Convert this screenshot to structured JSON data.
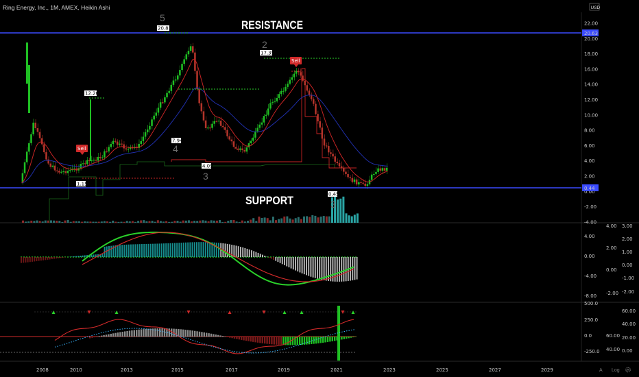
{
  "header": {
    "title": "Ring Energy, Inc., 1M, AMEX, Heikin Ashi",
    "currency": "USD"
  },
  "footer": {
    "a_label": "A",
    "log_label": "Log"
  },
  "colors": {
    "up": "#1fbf23",
    "down": "#b3342a",
    "resistance": "#3a4bff",
    "support": "#3a4bff",
    "ema_fast": "#c62424",
    "ema_slow": "#1f2ea8"
  },
  "chart_data": [
    {
      "type": "line",
      "panel": "price",
      "title": "",
      "scale": "log",
      "x": [
        "2007-12",
        "2008-06",
        "2009-01",
        "2009-06",
        "2010-01",
        "2010-06",
        "2011-01",
        "2011-06",
        "2012-01",
        "2012-06",
        "2013-01",
        "2013-06",
        "2014-01",
        "2014-06",
        "2014-09",
        "2015-01",
        "2015-06",
        "2016-01",
        "2016-06",
        "2017-01",
        "2017-06",
        "2018-01",
        "2018-06",
        "2019-01",
        "2019-06",
        "2020-01",
        "2020-06",
        "2021-01",
        "2021-06",
        "2021-11"
      ],
      "series": [
        {
          "name": "",
          "values": [
            1.1,
            9.0,
            3.5,
            2.5,
            2.9,
            3.8,
            4.5,
            6.5,
            5.5,
            6.0,
            10.0,
            12.5,
            16.0,
            19.5,
            12.0,
            8.0,
            9.5,
            6.0,
            5.2,
            8.5,
            11.5,
            13.5,
            16.0,
            12.0,
            6.5,
            3.2,
            1.6,
            0.7,
            2.8,
            3.0
          ]
        }
      ],
      "annotations": {
        "wave_labels": [
          "5",
          "4",
          "3",
          "2",
          "3",
          "3"
        ],
        "price_callouts": [
          "20.81",
          "12.20",
          "1.15",
          "7.94",
          "4.09",
          "17.35",
          "0.45"
        ],
        "sell_label": "Sell",
        "resistance_price": "20.63",
        "support_price": "0.44",
        "resistance_text": "RESISTANCE",
        "support_text": "SUPPORT"
      },
      "y_ticks": [
        "22.00",
        "20.00",
        "18.00",
        "16.00",
        "14.00",
        "12.00",
        "10.00",
        "8.00",
        "6.00",
        "4.00",
        "2.00",
        "0.00",
        "-2.00",
        "-4.00"
      ],
      "x_ticks": [
        "2008",
        "2010",
        "2013",
        "2015",
        "2017",
        "2019",
        "2021",
        "2023",
        "2025",
        "2027",
        "2029"
      ]
    },
    {
      "type": "line",
      "panel": "macd",
      "y_ticks_left": [
        "4.00",
        "0.00",
        "-4.00",
        "-8.00"
      ],
      "y_ticks_right_a": [
        "4.00",
        "2.00",
        "0.00",
        "-2.00"
      ],
      "y_ticks_right_b": [
        "3.00",
        "2.00",
        "1.00",
        "0.00",
        "-1.00",
        "-2.00"
      ]
    },
    {
      "type": "line",
      "panel": "oscillator",
      "y_ticks_left": [
        "500.0",
        "250.0",
        "0.0",
        "-250.0"
      ],
      "y_ticks_right_a": [
        "60.00",
        "40.00"
      ],
      "y_ticks_right_b": [
        "60.00",
        "40.00",
        "20.00",
        "0.00"
      ]
    }
  ]
}
